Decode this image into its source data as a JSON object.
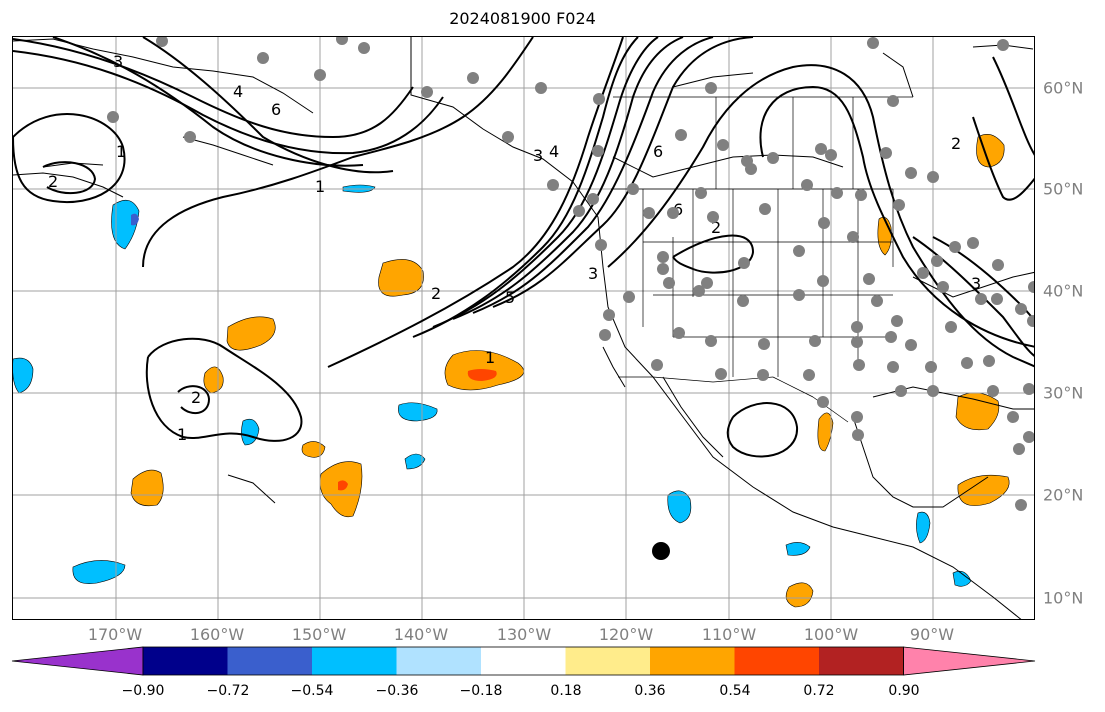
{
  "title": "2024081900 F024",
  "map": {
    "lon_labels": [
      "170°W",
      "160°W",
      "150°W",
      "140°W",
      "130°W",
      "120°W",
      "110°W",
      "100°W",
      "90°W"
    ],
    "lat_labels": [
      "60°N",
      "50°N",
      "40°N",
      "30°N",
      "20°N",
      "10°N"
    ],
    "contour_labels": [
      "3",
      "4",
      "6",
      "1",
      "2",
      "3",
      "4",
      "6",
      "1",
      "2",
      "5",
      "3",
      "6",
      "2",
      "1",
      "2",
      "1",
      "2",
      "3"
    ],
    "colors": {
      "contour": "#000000",
      "coast": "#000000",
      "grid": "#a0a0a0",
      "station": "#808080",
      "marker": "#000000"
    }
  },
  "colorbar": {
    "ticks": [
      "−0.90",
      "−0.72",
      "−0.54",
      "−0.36",
      "−0.18",
      "0.18",
      "0.36",
      "0.54",
      "0.72",
      "0.90"
    ],
    "colors": [
      "#9932cc",
      "#00008b",
      "#3a5fcd",
      "#00bfff",
      "#b0e2ff",
      "#ffffff",
      "#ffec8b",
      "#ffa500",
      "#ff4500",
      "#b22222",
      "#ff82ab"
    ]
  }
}
